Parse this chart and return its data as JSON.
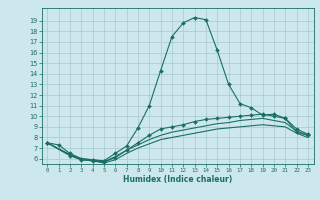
{
  "xlabel": "Humidex (Indice chaleur)",
  "xlim": [
    -0.5,
    23.5
  ],
  "ylim": [
    5.5,
    20.2
  ],
  "yticks": [
    6,
    7,
    8,
    9,
    10,
    11,
    12,
    13,
    14,
    15,
    16,
    17,
    18,
    19
  ],
  "xticks": [
    0,
    1,
    2,
    3,
    4,
    5,
    6,
    7,
    8,
    9,
    10,
    11,
    12,
    13,
    14,
    15,
    16,
    17,
    18,
    19,
    20,
    21,
    22,
    23
  ],
  "bg_color": "#cde8ec",
  "grid_color": "#aac8cc",
  "line_color": "#1a6e65",
  "line1_x": [
    0,
    1,
    2,
    3,
    4,
    5,
    6,
    7,
    8,
    9,
    10,
    11,
    12,
    13,
    14,
    15,
    16,
    17,
    18,
    19,
    20,
    21,
    22,
    23
  ],
  "line1_y": [
    7.5,
    7.3,
    6.5,
    6.0,
    5.9,
    5.8,
    6.5,
    7.2,
    8.9,
    11.0,
    14.3,
    17.5,
    18.8,
    19.3,
    19.1,
    16.2,
    13.0,
    11.2,
    10.8,
    10.1,
    10.2,
    9.8,
    8.5,
    8.2
  ],
  "line2_x": [
    0,
    2,
    3,
    4,
    5,
    6,
    7,
    8,
    9,
    10,
    11,
    12,
    13,
    14,
    15,
    16,
    17,
    18,
    19,
    20,
    21,
    22,
    23
  ],
  "line2_y": [
    7.5,
    6.3,
    5.9,
    5.8,
    5.7,
    6.1,
    6.8,
    7.5,
    8.2,
    8.8,
    9.0,
    9.2,
    9.5,
    9.7,
    9.8,
    9.9,
    10.0,
    10.1,
    10.2,
    10.0,
    9.8,
    8.8,
    8.3
  ],
  "line3_x": [
    0,
    2,
    3,
    4,
    5,
    6,
    7,
    8,
    9,
    10,
    11,
    12,
    13,
    14,
    15,
    16,
    17,
    18,
    19,
    20,
    21,
    22,
    23
  ],
  "line3_y": [
    7.5,
    6.4,
    6.0,
    5.9,
    5.7,
    6.2,
    6.8,
    7.3,
    7.8,
    8.2,
    8.5,
    8.7,
    8.9,
    9.1,
    9.3,
    9.4,
    9.6,
    9.7,
    9.8,
    9.6,
    9.4,
    8.6,
    8.2
  ],
  "line4_x": [
    0,
    2,
    3,
    4,
    5,
    6,
    7,
    8,
    9,
    10,
    11,
    12,
    13,
    14,
    15,
    16,
    17,
    18,
    19,
    20,
    21,
    22,
    23
  ],
  "line4_y": [
    7.5,
    6.3,
    5.9,
    5.8,
    5.6,
    5.9,
    6.5,
    7.0,
    7.4,
    7.8,
    8.0,
    8.2,
    8.4,
    8.6,
    8.8,
    8.9,
    9.0,
    9.1,
    9.2,
    9.1,
    9.0,
    8.4,
    8.0
  ]
}
